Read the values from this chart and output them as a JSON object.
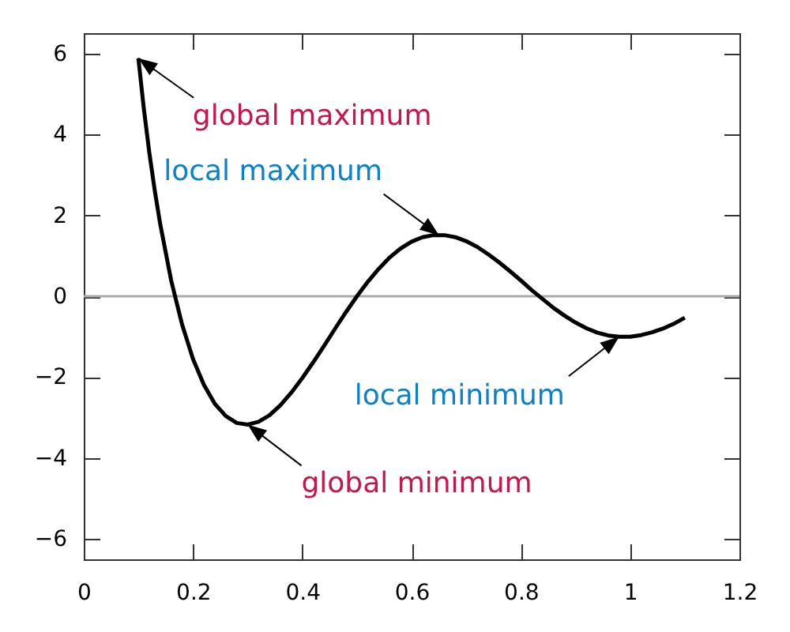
{
  "chart_data": {
    "type": "line",
    "x": [
      0.1,
      0.11,
      0.12,
      0.13,
      0.14,
      0.16,
      0.18,
      0.2,
      0.22,
      0.24,
      0.26,
      0.28,
      0.3,
      0.32,
      0.34,
      0.36,
      0.38,
      0.4,
      0.42,
      0.44,
      0.46,
      0.48,
      0.5,
      0.52,
      0.54,
      0.56,
      0.58,
      0.6,
      0.62,
      0.64,
      0.66,
      0.68,
      0.7,
      0.72,
      0.74,
      0.76,
      0.78,
      0.8,
      0.82,
      0.84,
      0.86,
      0.88,
      0.9,
      0.92,
      0.94,
      0.96,
      0.98,
      1.0,
      1.02,
      1.04,
      1.06,
      1.08,
      1.1
    ],
    "series": [
      {
        "color": "#000000",
        "values": [
          5.88,
          4.63,
          3.55,
          2.61,
          1.78,
          0.39,
          -0.7,
          -1.55,
          -2.19,
          -2.66,
          -2.96,
          -3.13,
          -3.17,
          -3.1,
          -2.94,
          -2.69,
          -2.38,
          -2.02,
          -1.63,
          -1.22,
          -0.8,
          -0.39,
          0.0,
          0.36,
          0.68,
          0.96,
          1.18,
          1.35,
          1.46,
          1.51,
          1.51,
          1.46,
          1.36,
          1.22,
          1.04,
          0.84,
          0.62,
          0.39,
          0.15,
          -0.07,
          -0.29,
          -0.48,
          -0.65,
          -0.79,
          -0.9,
          -0.97,
          -1.0,
          -1.0,
          -0.96,
          -0.89,
          -0.8,
          -0.68,
          -0.53
        ]
      }
    ],
    "xlim": [
      0,
      1.2
    ],
    "ylim": [
      -6.5,
      6.5
    ],
    "xticks": [
      0,
      0.2,
      0.4,
      0.6,
      0.8,
      1,
      1.2
    ],
    "yticks": [
      {
        "value": -6,
        "label": "−6"
      },
      {
        "value": -4,
        "label": "−4"
      },
      {
        "value": -2,
        "label": "−2"
      },
      0,
      2,
      4,
      6
    ],
    "ref_lines": [
      {
        "axis": "y",
        "value": 0,
        "color": "#aaaaaa"
      }
    ],
    "annotations": [
      {
        "text": "global maximum",
        "x": 0.1,
        "y": 5.88
      },
      {
        "text": "local maximum",
        "x": 0.65,
        "y": 1.51
      },
      {
        "text": "global minimum",
        "x": 0.3,
        "y": -3.17
      },
      {
        "text": "local minimum",
        "x": 0.98,
        "y": -1.0
      }
    ]
  }
}
